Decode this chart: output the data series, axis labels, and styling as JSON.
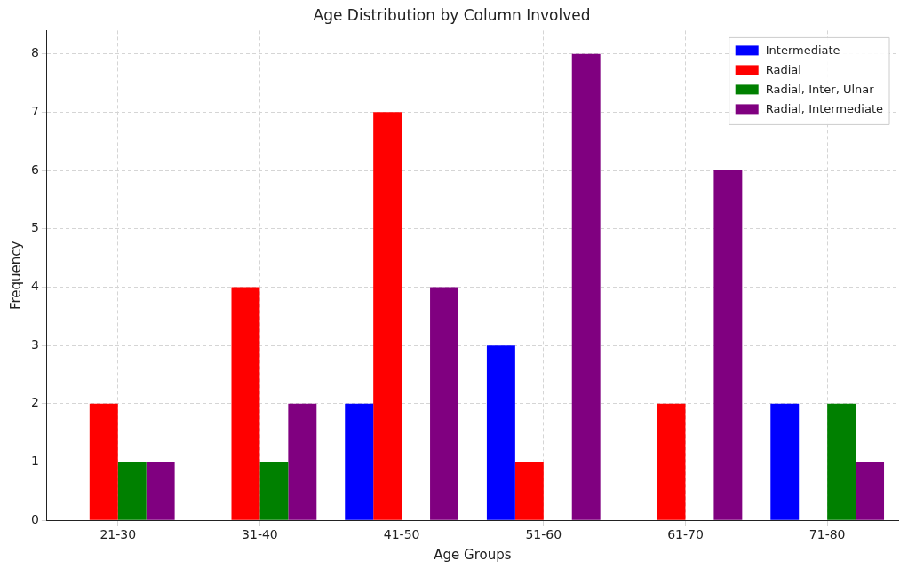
{
  "chart_data": {
    "type": "bar",
    "title": "Age Distribution by Column Involved",
    "xlabel": "Age Groups",
    "ylabel": "Frequency",
    "categories": [
      "21-30",
      "31-40",
      "41-50",
      "51-60",
      "61-70",
      "71-80"
    ],
    "series": [
      {
        "name": "Intermediate",
        "color": "#0000ff",
        "values": [
          0,
          0,
          2,
          3,
          0,
          2
        ]
      },
      {
        "name": "Radial",
        "color": "#ff0000",
        "values": [
          2,
          4,
          7,
          1,
          2,
          0
        ]
      },
      {
        "name": "Radial, Inter, Ulnar",
        "color": "#008000",
        "values": [
          1,
          1,
          0,
          0,
          0,
          2
        ]
      },
      {
        "name": "Radial, Intermediate",
        "color": "#800080",
        "values": [
          1,
          2,
          4,
          8,
          6,
          1
        ]
      }
    ],
    "ylim": [
      0,
      8.4
    ],
    "yticks": [
      0,
      1,
      2,
      3,
      4,
      5,
      6,
      7,
      8
    ],
    "grid": true,
    "legend": "top right"
  }
}
